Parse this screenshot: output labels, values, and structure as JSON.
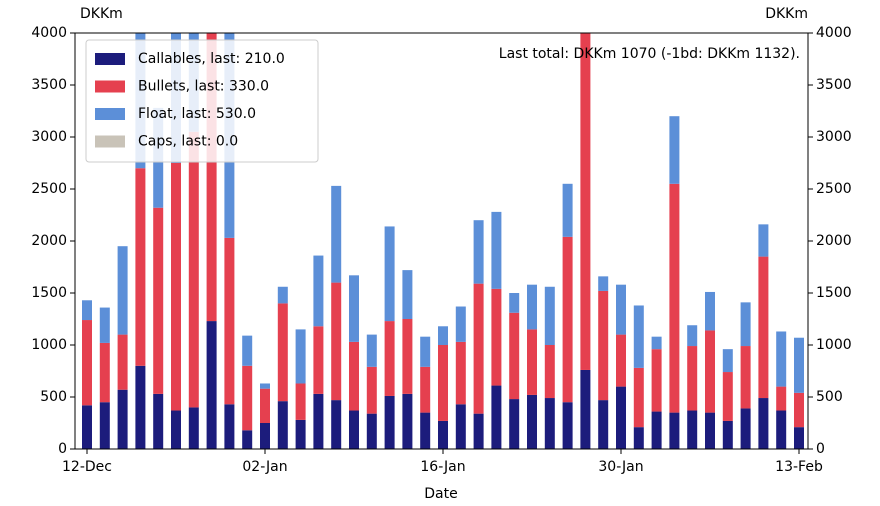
{
  "chart_data": {
    "type": "stacked_bar",
    "y_label": "DKKm",
    "y2_label": "DKKm",
    "x_label": "Date",
    "annotation": "Last total: DKKm 1070 (-1bd: DKKm 1132).",
    "categories": [
      "12-Dec",
      null,
      null,
      null,
      null,
      null,
      null,
      null,
      null,
      null,
      "02-Jan",
      null,
      null,
      null,
      null,
      null,
      null,
      null,
      null,
      null,
      "16-Jan",
      null,
      null,
      null,
      null,
      null,
      null,
      null,
      null,
      null,
      "30-Jan",
      null,
      null,
      null,
      null,
      null,
      null,
      null,
      null,
      null,
      "13-Feb"
    ],
    "series": [
      {
        "name": "Callables, last: 210.0",
        "color": "#1c1c7c",
        "values": [
          420,
          450,
          570,
          800,
          530,
          370,
          400,
          1230,
          430,
          180,
          250,
          460,
          280,
          530,
          470,
          370,
          340,
          510,
          530,
          350,
          270,
          430,
          340,
          610,
          480,
          520,
          490,
          450,
          760,
          470,
          600,
          210,
          360,
          350,
          370,
          350,
          270,
          390,
          490,
          370,
          210
        ]
      },
      {
        "name": "Bullets, last: 330.0",
        "color": "#e5404f",
        "values": [
          820,
          570,
          530,
          1900,
          1790,
          2380,
          2650,
          2900,
          1600,
          620,
          330,
          940,
          350,
          650,
          1130,
          660,
          450,
          720,
          720,
          440,
          730,
          600,
          1250,
          930,
          830,
          630,
          510,
          1590,
          3600,
          1050,
          500,
          570,
          600,
          2200,
          620,
          790,
          470,
          600,
          1360,
          230,
          330
        ]
      },
      {
        "name": "Float, last: 530.0",
        "color": "#5c8fd8",
        "values": [
          190,
          340,
          850,
          1800,
          960,
          1500,
          1200,
          300,
          2200,
          290,
          50,
          160,
          520,
          680,
          930,
          640,
          310,
          910,
          470,
          290,
          180,
          340,
          610,
          740,
          190,
          430,
          560,
          510,
          300,
          140,
          480,
          600,
          120,
          650,
          200,
          370,
          220,
          420,
          310,
          530,
          530
        ]
      },
      {
        "name": "Caps, last: 0.0",
        "color": "#c9c3b8",
        "values": [
          0,
          0,
          0,
          0,
          0,
          0,
          0,
          0,
          0,
          0,
          0,
          0,
          0,
          0,
          0,
          0,
          0,
          0,
          0,
          0,
          0,
          0,
          0,
          0,
          0,
          0,
          0,
          0,
          0,
          0,
          0,
          0,
          0,
          0,
          0,
          0,
          0,
          0,
          0,
          0,
          0
        ]
      }
    ],
    "ylim": [
      0,
      4000
    ],
    "yticks": [
      0,
      500,
      1000,
      1500,
      2000,
      2500,
      3000,
      3500,
      4000
    ],
    "y2lim": [
      0,
      4000
    ],
    "y2ticks": [
      0,
      500,
      1000,
      1500,
      2000,
      2500,
      3000,
      3500,
      4000
    ],
    "legend": "upper left"
  }
}
